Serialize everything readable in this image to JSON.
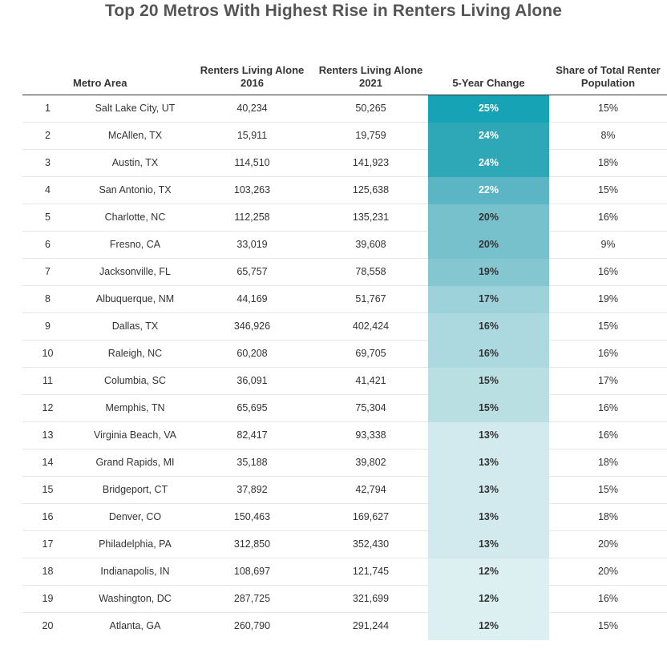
{
  "title": "Top 20 Metros With Highest Rise in Renters Living Alone",
  "chart_data": {
    "type": "table",
    "title": "Top 20 Metros With Highest Rise in Renters Living Alone",
    "columns": [
      "",
      "Metro Area",
      "Renters Living Alone 2016",
      "Renters Living Alone 2021",
      "5-Year Change",
      "Share of Total Renter Population"
    ],
    "column_headers": {
      "metro": "Metro Area",
      "r2016": "Renters Living Alone 2016",
      "r2021": "Renters Living Alone 2021",
      "change": "5-Year Change",
      "share": "Share of Total Renter Population"
    },
    "rows": [
      {
        "rank": "1",
        "metro": "Salt Lake City, UT",
        "r2016": "40,234",
        "r2021": "50,265",
        "change": "25%",
        "change_value": 25,
        "share": "15%"
      },
      {
        "rank": "2",
        "metro": "McAllen, TX",
        "r2016": "15,911",
        "r2021": "19,759",
        "change": "24%",
        "change_value": 24,
        "share": "8%"
      },
      {
        "rank": "3",
        "metro": "Austin, TX",
        "r2016": "114,510",
        "r2021": "141,923",
        "change": "24%",
        "change_value": 24,
        "share": "18%"
      },
      {
        "rank": "4",
        "metro": "San Antonio, TX",
        "r2016": "103,263",
        "r2021": "125,638",
        "change": "22%",
        "change_value": 22,
        "share": "15%"
      },
      {
        "rank": "5",
        "metro": "Charlotte, NC",
        "r2016": "112,258",
        "r2021": "135,231",
        "change": "20%",
        "change_value": 20,
        "share": "16%"
      },
      {
        "rank": "6",
        "metro": "Fresno, CA",
        "r2016": "33,019",
        "r2021": "39,608",
        "change": "20%",
        "change_value": 20,
        "share": "9%"
      },
      {
        "rank": "7",
        "metro": "Jacksonville, FL",
        "r2016": "65,757",
        "r2021": "78,558",
        "change": "19%",
        "change_value": 19,
        "share": "16%"
      },
      {
        "rank": "8",
        "metro": "Albuquerque, NM",
        "r2016": "44,169",
        "r2021": "51,767",
        "change": "17%",
        "change_value": 17,
        "share": "19%"
      },
      {
        "rank": "9",
        "metro": "Dallas, TX",
        "r2016": "346,926",
        "r2021": "402,424",
        "change": "16%",
        "change_value": 16,
        "share": "15%"
      },
      {
        "rank": "10",
        "metro": "Raleigh, NC",
        "r2016": "60,208",
        "r2021": "69,705",
        "change": "16%",
        "change_value": 16,
        "share": "16%"
      },
      {
        "rank": "11",
        "metro": "Columbia, SC",
        "r2016": "36,091",
        "r2021": "41,421",
        "change": "15%",
        "change_value": 15,
        "share": "17%"
      },
      {
        "rank": "12",
        "metro": "Memphis, TN",
        "r2016": "65,695",
        "r2021": "75,304",
        "change": "15%",
        "change_value": 15,
        "share": "16%"
      },
      {
        "rank": "13",
        "metro": "Virginia Beach, VA",
        "r2016": "82,417",
        "r2021": "93,338",
        "change": "13%",
        "change_value": 13,
        "share": "16%"
      },
      {
        "rank": "14",
        "metro": "Grand Rapids, MI",
        "r2016": "35,188",
        "r2021": "39,802",
        "change": "13%",
        "change_value": 13,
        "share": "18%"
      },
      {
        "rank": "15",
        "metro": "Bridgeport, CT",
        "r2016": "37,892",
        "r2021": "42,794",
        "change": "13%",
        "change_value": 13,
        "share": "15%"
      },
      {
        "rank": "16",
        "metro": "Denver, CO",
        "r2016": "150,463",
        "r2021": "169,627",
        "change": "13%",
        "change_value": 13,
        "share": "18%"
      },
      {
        "rank": "17",
        "metro": "Philadelphia, PA",
        "r2016": "312,850",
        "r2021": "352,430",
        "change": "13%",
        "change_value": 13,
        "share": "20%"
      },
      {
        "rank": "18",
        "metro": "Indianapolis, IN",
        "r2016": "108,697",
        "r2021": "121,745",
        "change": "12%",
        "change_value": 12,
        "share": "20%"
      },
      {
        "rank": "19",
        "metro": "Washington, DC",
        "r2016": "287,725",
        "r2021": "321,699",
        "change": "12%",
        "change_value": 12,
        "share": "16%"
      },
      {
        "rank": "20",
        "metro": "Atlanta, GA",
        "r2016": "260,790",
        "r2021": "291,244",
        "change": "12%",
        "change_value": 12,
        "share": "15%"
      }
    ],
    "heat_colors": {
      "25": "#15a3b5",
      "24": "#2ea7b7",
      "22": "#5bb5c4",
      "20": "#76c1cc",
      "19": "#84c7d1",
      "17": "#9dd2da",
      "16": "#acd8df",
      "15": "#b9dfe3",
      "13": "#d2eaed",
      "12": "#dceff1"
    },
    "heat_text_colors": {
      "25": "#ffffff",
      "24": "#ffffff",
      "22": "#ffffff",
      "20": "#333333",
      "19": "#333333",
      "17": "#333333",
      "16": "#333333",
      "15": "#333333",
      "13": "#333333",
      "12": "#333333"
    }
  }
}
